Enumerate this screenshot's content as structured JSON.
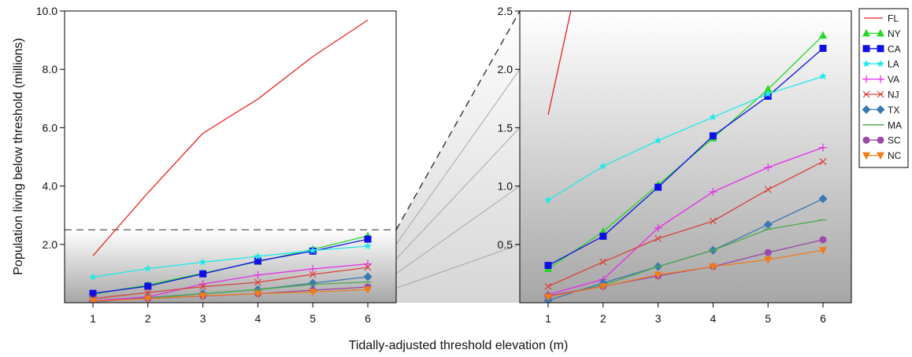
{
  "chart_data": {
    "type": "line",
    "xlabel": "Tidally-adjusted threshold elevation (m)",
    "ylabel": "Population living below threshold (millions)",
    "x": [
      1,
      2,
      3,
      4,
      5,
      6
    ],
    "left_panel": {
      "ylim": [
        0,
        10.0
      ],
      "yticks": [
        "2.0",
        "4.0",
        "6.0",
        "8.0",
        "10.0"
      ],
      "cutoff": 2.5
    },
    "right_panel": {
      "ylim": [
        0,
        2.5
      ],
      "yticks": [
        "0.5",
        "1.0",
        "1.5",
        "2.0",
        "2.5"
      ]
    },
    "legend_position": "right",
    "series": [
      {
        "name": "FL",
        "color": "#e8231f",
        "marker": "none",
        "values": [
          1.61,
          3.77,
          5.81,
          6.98,
          8.44,
          9.69
        ]
      },
      {
        "name": "NY",
        "color": "#22d822",
        "marker": "triangle-up",
        "values": [
          0.29,
          0.61,
          1.01,
          1.41,
          1.83,
          2.29
        ]
      },
      {
        "name": "CA",
        "color": "#1010e6",
        "marker": "square",
        "values": [
          0.32,
          0.57,
          0.99,
          1.43,
          1.77,
          2.18
        ]
      },
      {
        "name": "LA",
        "color": "#22e8e8",
        "marker": "star",
        "values": [
          0.88,
          1.17,
          1.39,
          1.59,
          1.79,
          1.94
        ]
      },
      {
        "name": "VA",
        "color": "#e52ee5",
        "marker": "plus",
        "values": [
          0.07,
          0.2,
          0.64,
          0.95,
          1.16,
          1.33
        ]
      },
      {
        "name": "NJ",
        "color": "#d8413a",
        "marker": "x",
        "values": [
          0.14,
          0.35,
          0.55,
          0.7,
          0.97,
          1.21
        ]
      },
      {
        "name": "TX",
        "color": "#3a78b4",
        "marker": "diamond",
        "values": [
          0.02,
          0.17,
          0.31,
          0.45,
          0.67,
          0.89
        ]
      },
      {
        "name": "MA",
        "color": "#4aa84a",
        "marker": "dash",
        "values": [
          0.05,
          0.15,
          0.31,
          0.45,
          0.63,
          0.71
        ]
      },
      {
        "name": "SC",
        "color": "#9a4aa8",
        "marker": "circle",
        "values": [
          0.06,
          0.14,
          0.23,
          0.31,
          0.43,
          0.54
        ]
      },
      {
        "name": "NC",
        "color": "#f07d1a",
        "marker": "triangle-down",
        "values": [
          0.05,
          0.14,
          0.24,
          0.31,
          0.37,
          0.45
        ]
      }
    ]
  }
}
